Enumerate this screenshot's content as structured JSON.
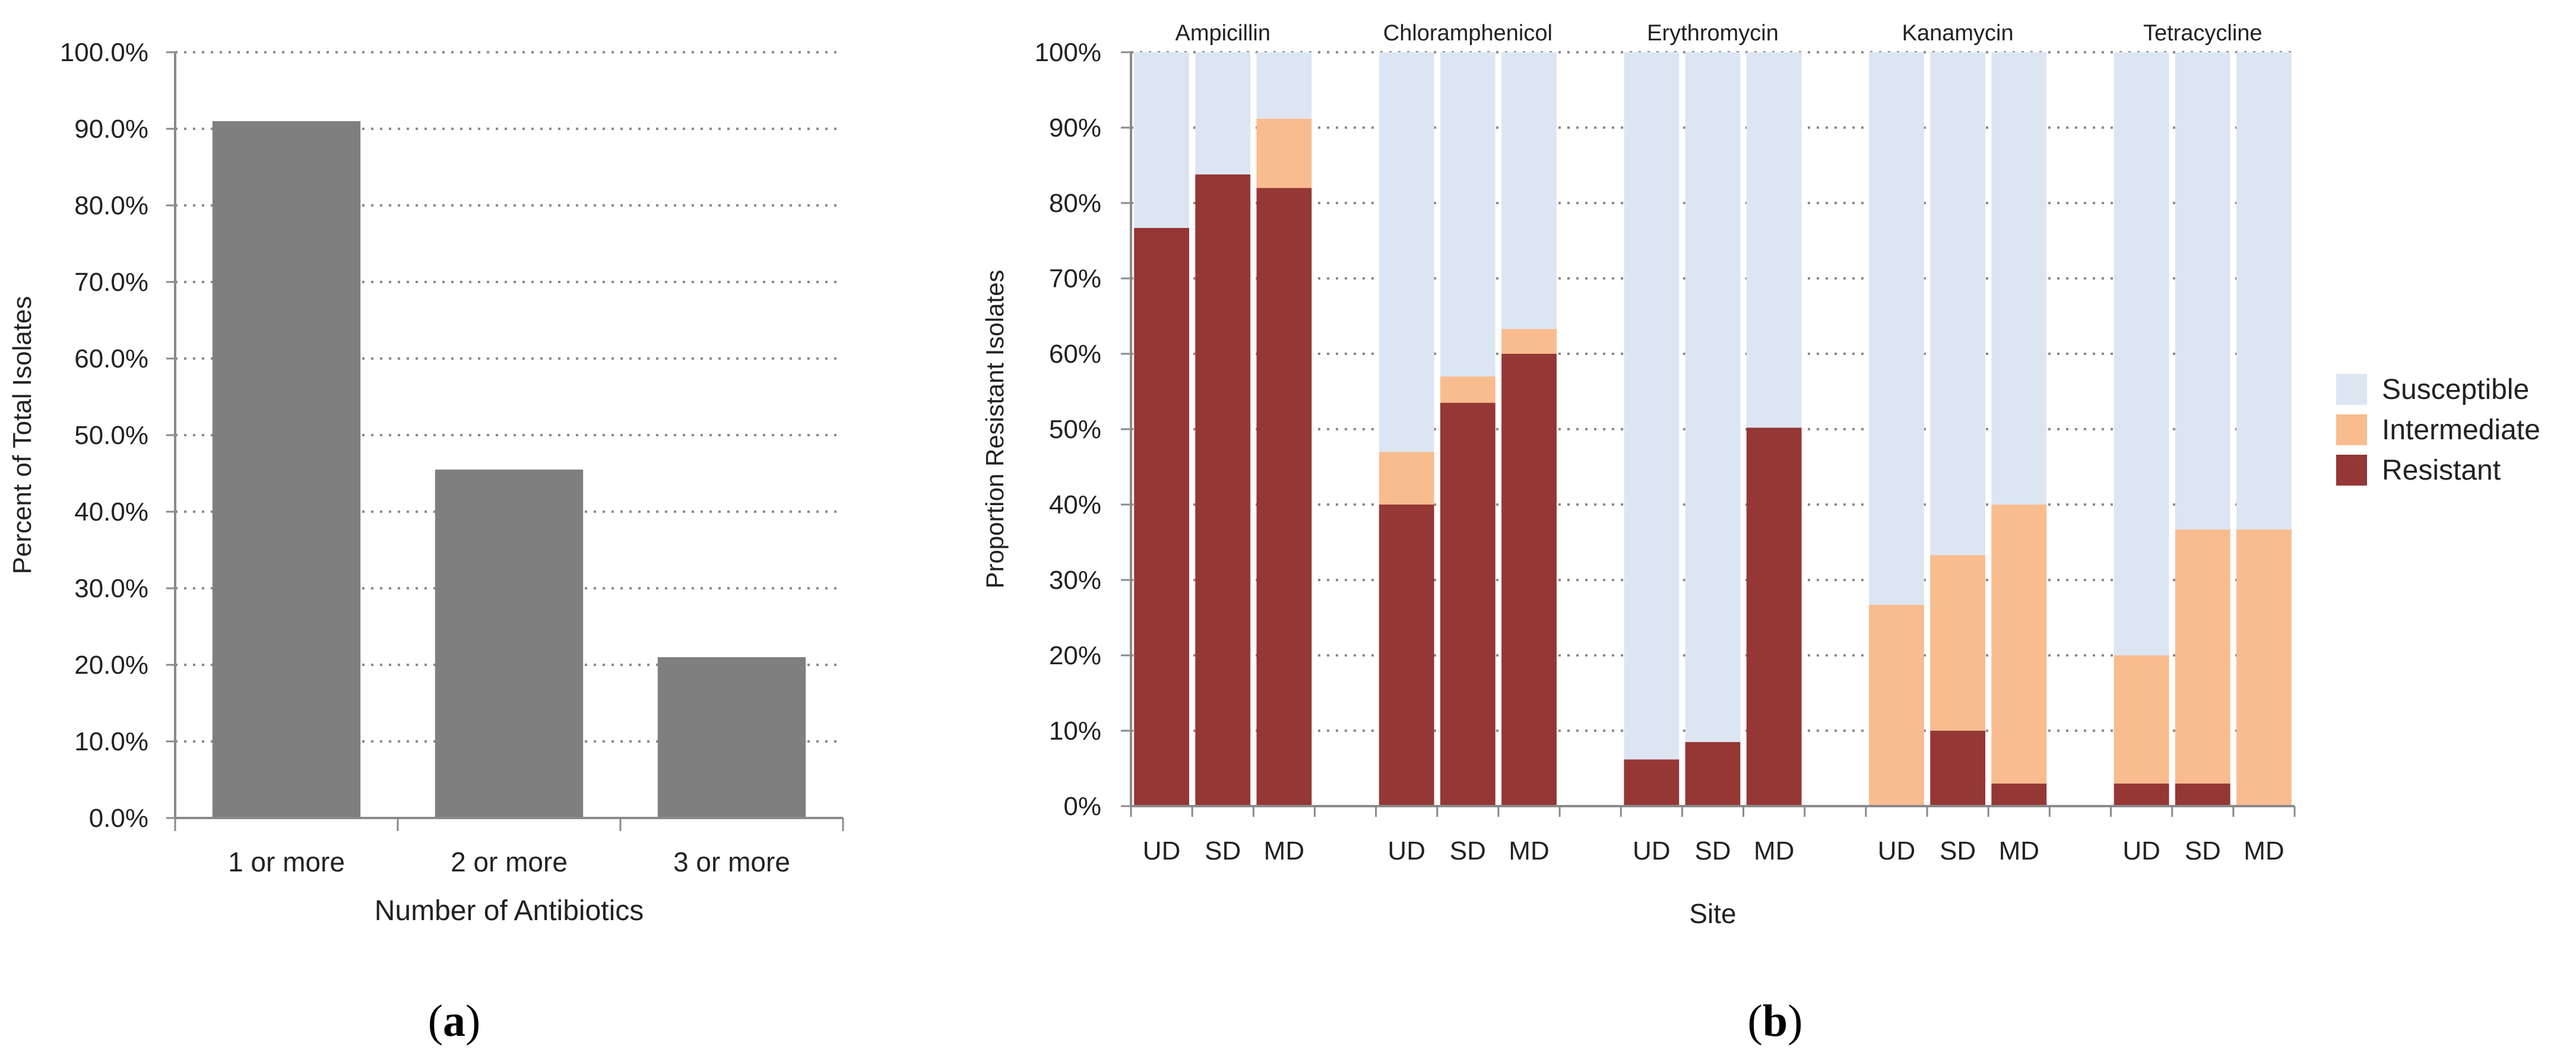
{
  "panel_labels": {
    "a": "a",
    "b": "b"
  },
  "chart_data": [
    {
      "type": "bar",
      "panel": "a",
      "title": "",
      "xlabel": "Number of Antibiotics",
      "ylabel": "Percent of Total Isolates",
      "ylim": [
        0,
        100
      ],
      "ytick_values": [
        0,
        10,
        20,
        30,
        40,
        50,
        60,
        70,
        80,
        90,
        100
      ],
      "ytick_labels": [
        "0.0%",
        "10.0%",
        "20.0%",
        "30.0%",
        "40.0%",
        "50.0%",
        "60.0%",
        "70.0%",
        "80.0%",
        "90.0%",
        "100.0%"
      ],
      "grid": "horizontal dotted",
      "color": "#7f7f7f",
      "categories": [
        "1 or more",
        "2 or more",
        "3 or more"
      ],
      "values": [
        91,
        45.5,
        21
      ]
    },
    {
      "type": "bar",
      "stacked": true,
      "panel": "b",
      "title": "",
      "xlabel": "Site",
      "ylabel": "Proportion Resistant Isolates",
      "ylim": [
        0,
        100
      ],
      "ytick_values": [
        0,
        10,
        20,
        30,
        40,
        50,
        60,
        70,
        80,
        90,
        100
      ],
      "ytick_labels": [
        "0%",
        "10%",
        "20%",
        "30%",
        "40%",
        "50%",
        "60%",
        "70%",
        "80%",
        "90%",
        "100%"
      ],
      "grid": "horizontal dotted",
      "legend_position": "right",
      "legend": [
        {
          "name": "Susceptible",
          "color": "#dce6f2"
        },
        {
          "name": "Intermediate",
          "color": "#f8bc8f"
        },
        {
          "name": "Resistant",
          "color": "#953735"
        }
      ],
      "groups": [
        "Ampicillin",
        "Chloramphenicol",
        "Erythromycin",
        "Kanamycin",
        "Tetracycline"
      ],
      "sites": [
        "UD",
        "SD",
        "MD"
      ],
      "series": [
        {
          "name": "Resistant",
          "values": [
            [
              76.7,
              83.8,
              82
            ],
            [
              40,
              53.5,
              60
            ],
            [
              6.2,
              8.5,
              50.2
            ],
            [
              0,
              10,
              3
            ],
            [
              3,
              3,
              0
            ]
          ]
        },
        {
          "name": "Intermediate",
          "values": [
            [
              0,
              0,
              9.2
            ],
            [
              7,
              3.5,
              3.3
            ],
            [
              0,
              0,
              0
            ],
            [
              26.7,
              23.3,
              37
            ],
            [
              17,
              33.7,
              36.7
            ]
          ]
        },
        {
          "name": "Susceptible",
          "values": [
            [
              23.3,
              16.2,
              8.8
            ],
            [
              53,
              43,
              36.7
            ],
            [
              93.8,
              91.5,
              49.8
            ],
            [
              73.3,
              66.7,
              60
            ],
            [
              80,
              63.3,
              63.3
            ]
          ]
        }
      ]
    }
  ]
}
